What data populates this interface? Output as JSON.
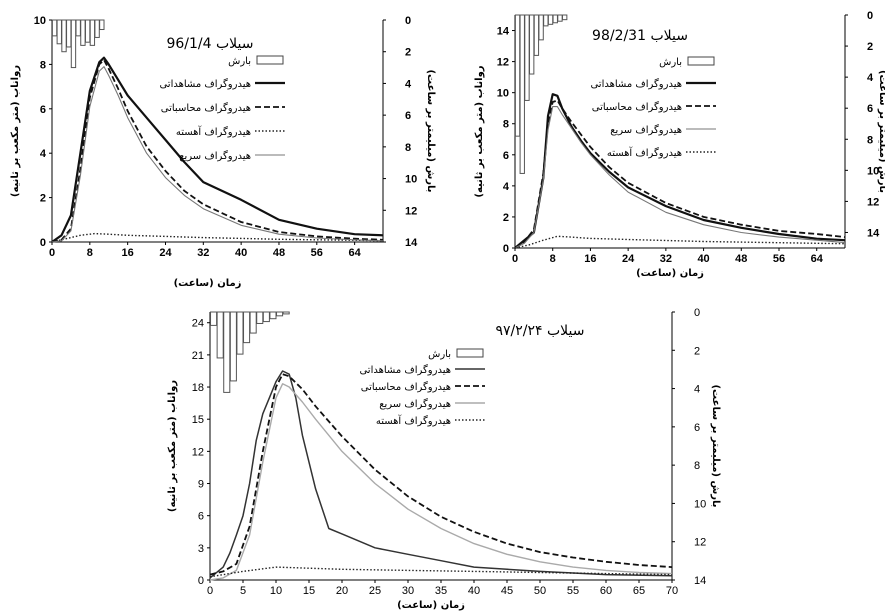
{
  "chart_data": [
    {
      "type": "line",
      "title": "سیلاب 96/1/4",
      "xlabel": "زمان (ساعت)",
      "ylabel": "رواناب (متر مکعب بر ثانیه)",
      "y2label": "بارش (میلیمتر بر ساعت)",
      "xlim": [
        0,
        70
      ],
      "ylim": [
        0,
        10
      ],
      "y2lim": [
        0,
        14
      ],
      "y2_inverted": true,
      "x_ticks": [
        0,
        8,
        16,
        24,
        32,
        40,
        48,
        56,
        64
      ],
      "y_ticks": [
        0,
        2,
        4,
        6,
        8,
        10
      ],
      "y2_ticks": [
        0,
        2,
        4,
        6,
        8,
        10,
        12,
        14
      ],
      "legend_position": "top-right",
      "precip": {
        "name": "بارش",
        "x": [
          1,
          2,
          3,
          4,
          5,
          6,
          7,
          8,
          9,
          10,
          11
        ],
        "values": [
          1.0,
          1.5,
          2.0,
          1.7,
          3.0,
          1.0,
          1.6,
          1.4,
          1.6,
          1.1,
          0.6
        ]
      },
      "series": [
        {
          "name": "هیدروگراف مشاهداتی",
          "style": "solid-thick",
          "x": [
            0,
            2,
            4,
            6,
            8,
            10,
            11,
            12,
            14,
            16,
            20,
            24,
            28,
            32,
            40,
            48,
            56,
            64,
            70
          ],
          "values": [
            0,
            0.3,
            1.2,
            4.0,
            6.8,
            8.1,
            8.3,
            8.0,
            7.3,
            6.6,
            5.6,
            4.6,
            3.6,
            2.7,
            1.9,
            1.0,
            0.6,
            0.35,
            0.3
          ]
        },
        {
          "name": "هیدروگراف محاسباتی",
          "style": "dashed",
          "x": [
            0,
            2,
            4,
            6,
            8,
            10,
            11,
            12,
            14,
            16,
            20,
            24,
            28,
            32,
            40,
            48,
            56,
            64,
            70
          ],
          "values": [
            0,
            0.1,
            0.6,
            3.3,
            6.5,
            8.0,
            8.2,
            7.8,
            6.9,
            5.9,
            4.3,
            3.2,
            2.3,
            1.7,
            0.9,
            0.45,
            0.25,
            0.15,
            0.1
          ]
        },
        {
          "name": "هیدروگراف آهسته",
          "style": "dotted",
          "x": [
            0,
            3,
            6,
            9,
            12,
            16,
            24,
            32,
            40,
            48,
            56,
            64,
            70
          ],
          "values": [
            0,
            0.15,
            0.3,
            0.38,
            0.35,
            0.3,
            0.25,
            0.2,
            0.16,
            0.12,
            0.1,
            0.08,
            0.06
          ]
        },
        {
          "name": "هیدروگراف سریع",
          "style": "solid-thin",
          "x": [
            0,
            2,
            4,
            6,
            8,
            10,
            11,
            12,
            14,
            16,
            20,
            24,
            28,
            32,
            40,
            48,
            56,
            64,
            70
          ],
          "values": [
            0,
            0.05,
            0.5,
            3.0,
            6.1,
            7.7,
            7.9,
            7.5,
            6.6,
            5.6,
            4.0,
            2.9,
            2.1,
            1.5,
            0.75,
            0.35,
            0.18,
            0.1,
            0.05
          ]
        }
      ]
    },
    {
      "type": "line",
      "title": "سیلاب 98/2/31",
      "xlabel": "زمان (ساعت)",
      "ylabel": "رواناب (متر مکعب بر ثانیه)",
      "y2label": "بارش (میلیمتر بر ساعت)",
      "xlim": [
        0,
        70
      ],
      "ylim": [
        0,
        15
      ],
      "y2lim": [
        0,
        15
      ],
      "y2_inverted": true,
      "x_ticks": [
        0,
        8,
        16,
        24,
        32,
        40,
        48,
        56,
        64
      ],
      "y_ticks": [
        0,
        2,
        4,
        6,
        8,
        10,
        12,
        14
      ],
      "y2_ticks": [
        0,
        2,
        4,
        6,
        8,
        10,
        12,
        14
      ],
      "legend_position": "top-right",
      "precip": {
        "name": "بارش",
        "x": [
          1,
          2,
          3,
          4,
          5,
          6,
          7,
          8,
          9,
          10,
          11
        ],
        "values": [
          7.8,
          10.2,
          5.5,
          3.8,
          2.6,
          1.6,
          0.7,
          0.6,
          0.5,
          0.4,
          0.3
        ]
      },
      "series": [
        {
          "name": "هیدروگراف مشاهداتی",
          "style": "solid-thick",
          "x": [
            0,
            2,
            4,
            6,
            7,
            8,
            9,
            10,
            12,
            14,
            16,
            20,
            24,
            32,
            40,
            48,
            56,
            64,
            70
          ],
          "values": [
            0,
            0.5,
            1.0,
            4.5,
            8.5,
            9.9,
            9.8,
            9.0,
            7.8,
            6.9,
            6.1,
            4.9,
            3.9,
            2.7,
            1.8,
            1.3,
            0.9,
            0.6,
            0.5
          ]
        },
        {
          "name": "هیدروگراف محاسباتی",
          "style": "dashed",
          "x": [
            0,
            2,
            4,
            6,
            7,
            8,
            9,
            10,
            12,
            14,
            16,
            20,
            24,
            32,
            40,
            48,
            56,
            64,
            70
          ],
          "values": [
            0,
            0.4,
            1.2,
            4.8,
            8.0,
            9.4,
            9.5,
            9.0,
            8.1,
            7.3,
            6.5,
            5.2,
            4.2,
            2.9,
            2.0,
            1.5,
            1.1,
            0.9,
            0.7
          ]
        },
        {
          "name": "هیدروگراف سریع",
          "style": "solid-thin",
          "x": [
            0,
            2,
            4,
            6,
            7,
            8,
            9,
            10,
            12,
            14,
            16,
            20,
            24,
            32,
            40,
            48,
            56,
            64,
            70
          ],
          "values": [
            0,
            0.3,
            1.0,
            4.4,
            7.6,
            9.1,
            9.1,
            8.6,
            7.7,
            6.8,
            6.0,
            4.7,
            3.6,
            2.3,
            1.5,
            1.0,
            0.7,
            0.5,
            0.35
          ]
        },
        {
          "name": "هیدروگراف آهسته",
          "style": "dotted",
          "x": [
            0,
            3,
            6,
            9,
            12,
            16,
            24,
            32,
            40,
            48,
            56,
            64,
            70
          ],
          "values": [
            0,
            0.2,
            0.5,
            0.75,
            0.7,
            0.62,
            0.55,
            0.48,
            0.42,
            0.38,
            0.34,
            0.3,
            0.28
          ]
        }
      ]
    },
    {
      "type": "line",
      "title": "سیلاب ۹۷/۲/۲۴",
      "xlabel": "زمان (ساعت)",
      "ylabel": "رواناب (متر مکعب بر ثانیه)",
      "y2label": "بارش (میلیمتر بر ساعت)",
      "xlim": [
        0,
        70
      ],
      "ylim": [
        0,
        25
      ],
      "y2lim": [
        0,
        14
      ],
      "y2_inverted": true,
      "x_ticks": [
        0,
        5,
        10,
        15,
        20,
        25,
        30,
        35,
        40,
        45,
        50,
        55,
        60,
        65,
        70
      ],
      "y_ticks": [
        0,
        3,
        6,
        9,
        12,
        15,
        18,
        21,
        24
      ],
      "y2_ticks": [
        0,
        2,
        4,
        6,
        8,
        10,
        12,
        14
      ],
      "legend_position": "top-right",
      "precip": {
        "name": "بارش",
        "x": [
          1,
          2,
          3,
          4,
          5,
          6,
          7,
          8,
          9,
          10,
          11,
          12
        ],
        "values": [
          0.7,
          2.4,
          4.2,
          3.6,
          2.2,
          1.6,
          1.1,
          0.6,
          0.5,
          0.35,
          0.2,
          0.1
        ]
      },
      "series": [
        {
          "name": "هیدروگراف مشاهداتی",
          "style": "solid",
          "x": [
            0,
            2,
            3,
            4,
            5,
            6,
            7,
            8,
            9,
            10,
            11,
            12,
            13,
            14,
            16,
            18,
            20,
            25,
            30,
            35,
            40,
            50,
            60,
            70
          ],
          "values": [
            0.2,
            1.2,
            2.5,
            4.2,
            6.0,
            9.0,
            13.0,
            15.5,
            17.0,
            18.5,
            19.5,
            19.2,
            17.0,
            13.5,
            8.5,
            4.8,
            4.3,
            3.0,
            2.4,
            1.8,
            1.2,
            0.8,
            0.5,
            0.4
          ]
        },
        {
          "name": "هیدروگراف محاسباتی",
          "style": "dashed",
          "x": [
            0,
            2,
            4,
            6,
            8,
            10,
            11,
            12,
            14,
            16,
            20,
            25,
            30,
            35,
            40,
            45,
            50,
            55,
            60,
            65,
            70
          ],
          "values": [
            0.5,
            0.8,
            1.5,
            5.0,
            12.0,
            18.0,
            19.2,
            19.0,
            17.8,
            16.2,
            13.4,
            10.3,
            7.8,
            5.9,
            4.5,
            3.4,
            2.6,
            2.1,
            1.7,
            1.4,
            1.2
          ]
        },
        {
          "name": "هیدروگراف سریع",
          "style": "solid-light",
          "x": [
            0,
            2,
            4,
            6,
            8,
            10,
            11,
            12,
            14,
            16,
            20,
            25,
            30,
            35,
            40,
            45,
            50,
            55,
            60,
            65,
            70
          ],
          "values": [
            0,
            0.2,
            0.9,
            4.2,
            11.0,
            17.0,
            18.3,
            18.0,
            16.6,
            15.0,
            12.0,
            9.0,
            6.6,
            4.8,
            3.4,
            2.4,
            1.7,
            1.2,
            0.9,
            0.7,
            0.6
          ]
        },
        {
          "name": "هیدروگراف آهسته",
          "style": "dotted",
          "x": [
            0,
            5,
            10,
            15,
            20,
            30,
            40,
            50,
            60,
            70
          ],
          "values": [
            0.3,
            0.8,
            1.2,
            1.1,
            1.0,
            0.9,
            0.8,
            0.7,
            0.6,
            0.5
          ]
        }
      ]
    }
  ]
}
